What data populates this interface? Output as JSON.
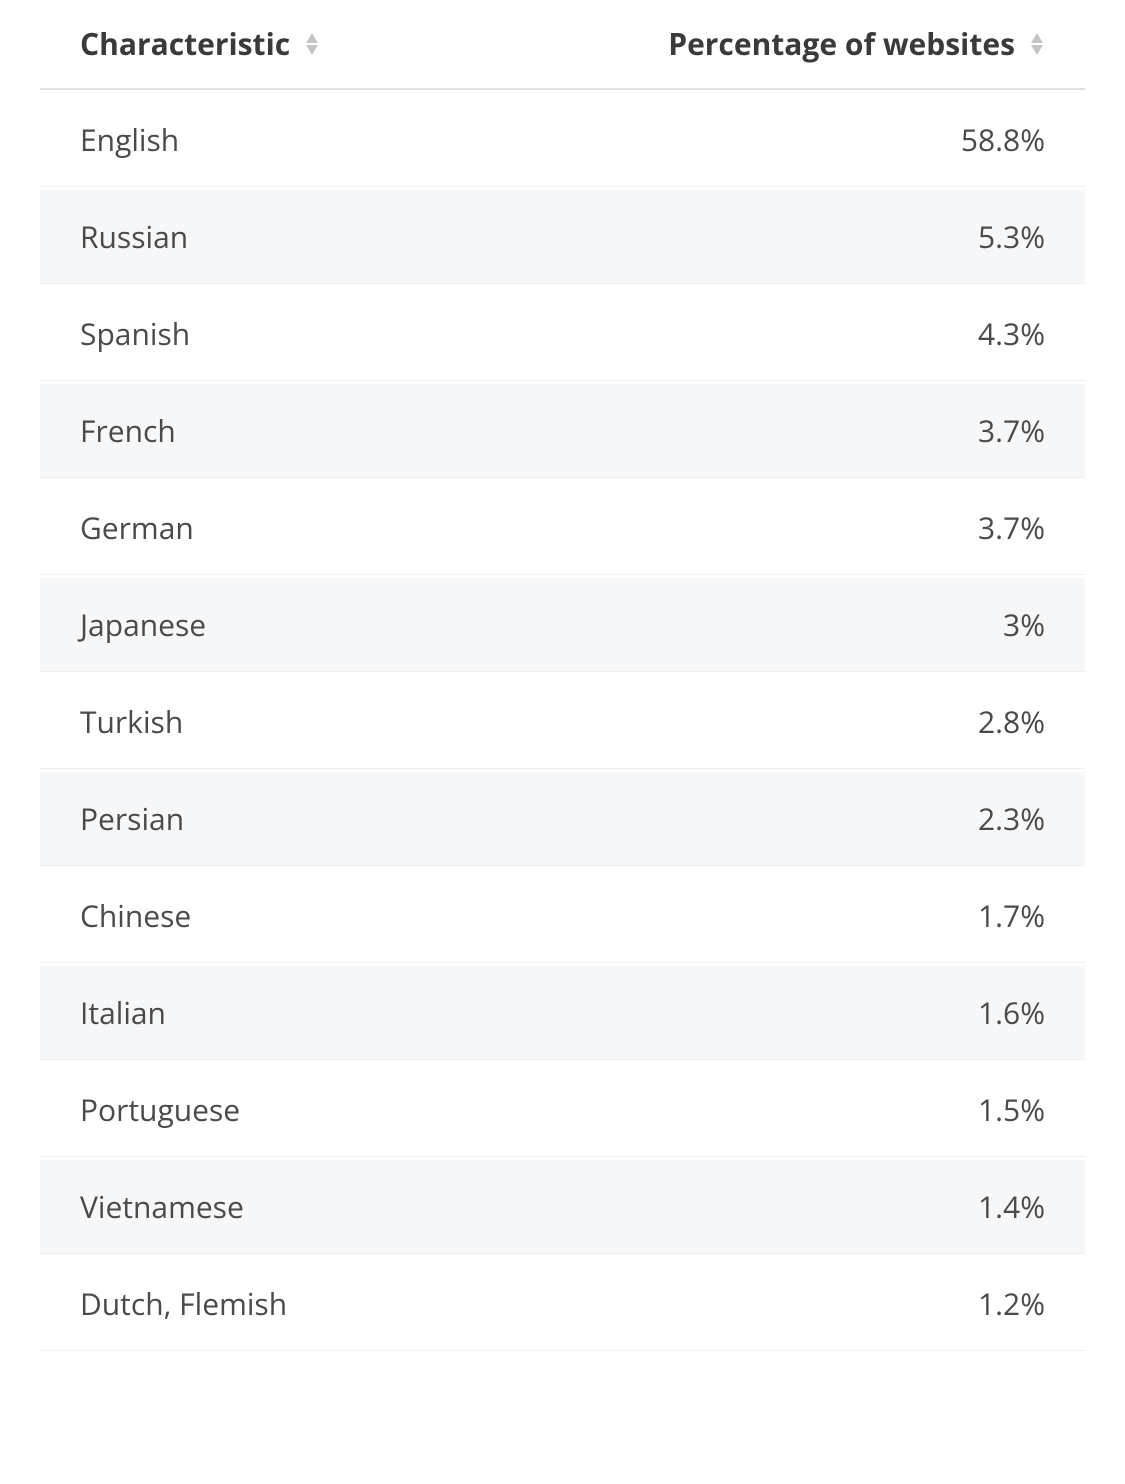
{
  "table": {
    "type": "table",
    "background_color": "#ffffff",
    "row_alt_background_color": "#f6f7f9",
    "border_color": "#eeeeee",
    "header_border_color": "#e0e0e0",
    "text_color": "#4a4a4a",
    "header_text_color": "#3a3a3a",
    "sort_icon_color": "#c5c5c5",
    "font_size_header": 30,
    "font_size_body": 30,
    "font_weight_header": 700,
    "font_weight_body": 400,
    "columns": [
      {
        "key": "characteristic",
        "label": "Characteristic",
        "align": "left",
        "sortable": true
      },
      {
        "key": "percentage",
        "label": "Percentage of websites",
        "align": "right",
        "sortable": true
      }
    ],
    "rows": [
      {
        "characteristic": "English",
        "percentage": "58.8%"
      },
      {
        "characteristic": "Russian",
        "percentage": "5.3%"
      },
      {
        "characteristic": "Spanish",
        "percentage": "4.3%"
      },
      {
        "characteristic": "French",
        "percentage": "3.7%"
      },
      {
        "characteristic": "German",
        "percentage": "3.7%"
      },
      {
        "characteristic": "Japanese",
        "percentage": "3%"
      },
      {
        "characteristic": "Turkish",
        "percentage": "2.8%"
      },
      {
        "characteristic": "Persian",
        "percentage": "2.3%"
      },
      {
        "characteristic": "Chinese",
        "percentage": "1.7%"
      },
      {
        "characteristic": "Italian",
        "percentage": "1.6%"
      },
      {
        "characteristic": "Portuguese",
        "percentage": "1.5%"
      },
      {
        "characteristic": "Vietnamese",
        "percentage": "1.4%"
      },
      {
        "characteristic": "Dutch, Flemish",
        "percentage": "1.2%"
      }
    ]
  }
}
